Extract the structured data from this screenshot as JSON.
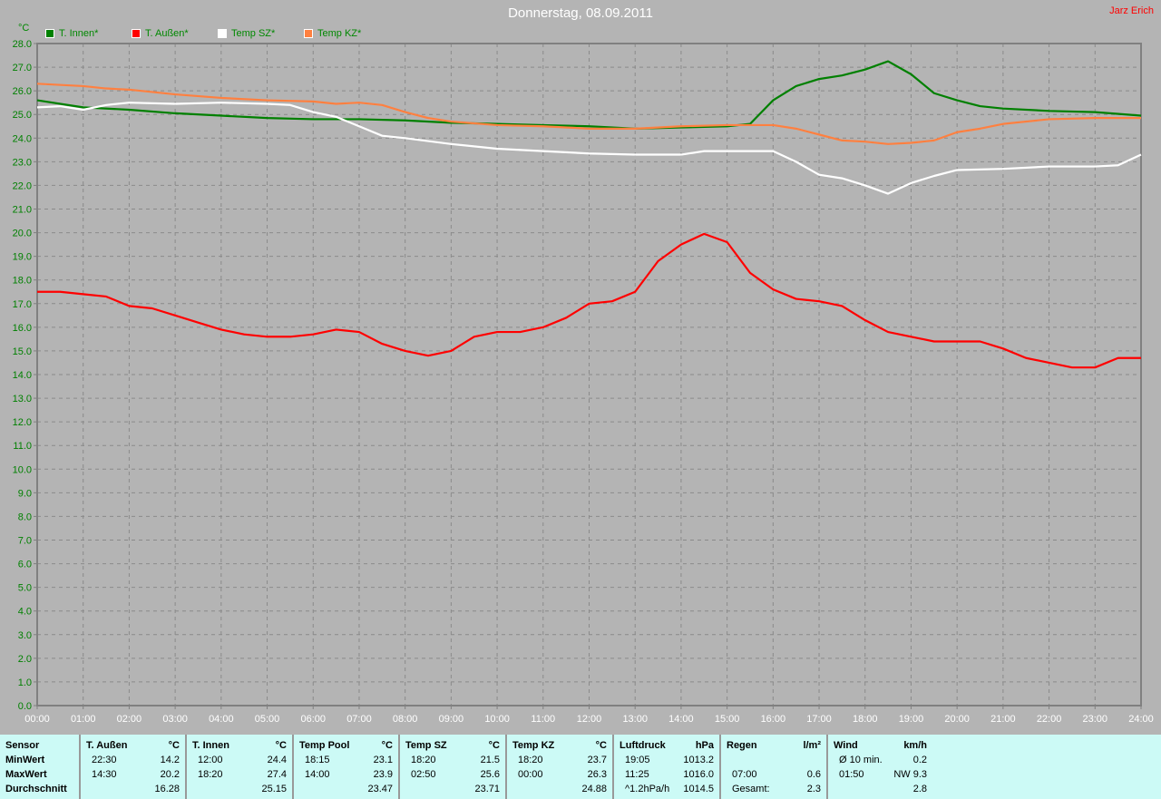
{
  "title": "Donnerstag, 08.09.2011",
  "author": "Jarz Erich",
  "colors": {
    "background": "#b4b4b4",
    "grid": "#8a8a8a",
    "axis_text": "#008000",
    "table_bg": "#ccfaf6"
  },
  "chart_data": {
    "type": "line",
    "title": "Donnerstag, 08.09.2011",
    "ylabel": "°C",
    "ylim": [
      0,
      28
    ],
    "xlim": [
      "00:00",
      "24:00"
    ],
    "grid": true,
    "legend_position": "top-left",
    "yticks": [
      "0.0",
      "1.0",
      "2.0",
      "3.0",
      "4.0",
      "5.0",
      "6.0",
      "7.0",
      "8.0",
      "9.0",
      "10.0",
      "11.0",
      "12.0",
      "13.0",
      "14.0",
      "15.0",
      "16.0",
      "17.0",
      "18.0",
      "19.0",
      "20.0",
      "21.0",
      "22.0",
      "23.0",
      "24.0",
      "25.0",
      "26.0",
      "27.0",
      "28.0"
    ],
    "xticks": [
      "00:00",
      "01:00",
      "02:00",
      "03:00",
      "04:00",
      "05:00",
      "06:00",
      "07:00",
      "08:00",
      "09:00",
      "10:00",
      "11:00",
      "12:00",
      "13:00",
      "14:00",
      "15:00",
      "16:00",
      "17:00",
      "18:00",
      "19:00",
      "20:00",
      "21:00",
      "22:00",
      "23:00",
      "24:00"
    ],
    "series": [
      {
        "name": "T. Innen*",
        "color": "#008000",
        "points": [
          [
            "00:00",
            25.6
          ],
          [
            "01:00",
            25.3
          ],
          [
            "02:00",
            25.2
          ],
          [
            "03:00",
            25.05
          ],
          [
            "04:00",
            24.95
          ],
          [
            "05:00",
            24.85
          ],
          [
            "06:00",
            24.8
          ],
          [
            "07:00",
            24.8
          ],
          [
            "08:00",
            24.75
          ],
          [
            "09:00",
            24.65
          ],
          [
            "10:00",
            24.6
          ],
          [
            "11:00",
            24.55
          ],
          [
            "12:00",
            24.5
          ],
          [
            "13:00",
            24.4
          ],
          [
            "14:00",
            24.45
          ],
          [
            "15:00",
            24.5
          ],
          [
            "15:30",
            24.6
          ],
          [
            "16:00",
            25.6
          ],
          [
            "16:30",
            26.2
          ],
          [
            "17:00",
            26.5
          ],
          [
            "17:30",
            26.65
          ],
          [
            "18:00",
            26.9
          ],
          [
            "18:30",
            27.25
          ],
          [
            "19:00",
            26.7
          ],
          [
            "19:30",
            25.9
          ],
          [
            "20:00",
            25.6
          ],
          [
            "20:30",
            25.35
          ],
          [
            "21:00",
            25.25
          ],
          [
            "22:00",
            25.15
          ],
          [
            "23:00",
            25.1
          ],
          [
            "24:00",
            24.95
          ]
        ]
      },
      {
        "name": "T. Außen*",
        "color": "#ff0000",
        "points": [
          [
            "00:00",
            17.5
          ],
          [
            "00:30",
            17.5
          ],
          [
            "01:00",
            17.4
          ],
          [
            "01:30",
            17.3
          ],
          [
            "02:00",
            16.9
          ],
          [
            "02:30",
            16.8
          ],
          [
            "03:00",
            16.5
          ],
          [
            "03:30",
            16.2
          ],
          [
            "04:00",
            15.9
          ],
          [
            "04:30",
            15.7
          ],
          [
            "05:00",
            15.6
          ],
          [
            "05:30",
            15.6
          ],
          [
            "06:00",
            15.7
          ],
          [
            "06:30",
            15.9
          ],
          [
            "07:00",
            15.8
          ],
          [
            "07:30",
            15.3
          ],
          [
            "08:00",
            15.0
          ],
          [
            "08:30",
            14.8
          ],
          [
            "09:00",
            15.0
          ],
          [
            "09:30",
            15.6
          ],
          [
            "10:00",
            15.8
          ],
          [
            "10:30",
            15.8
          ],
          [
            "11:00",
            16.0
          ],
          [
            "11:30",
            16.4
          ],
          [
            "12:00",
            17.0
          ],
          [
            "12:30",
            17.1
          ],
          [
            "13:00",
            17.5
          ],
          [
            "13:30",
            18.8
          ],
          [
            "14:00",
            19.5
          ],
          [
            "14:30",
            19.95
          ],
          [
            "15:00",
            19.6
          ],
          [
            "15:30",
            18.3
          ],
          [
            "16:00",
            17.6
          ],
          [
            "16:30",
            17.2
          ],
          [
            "17:00",
            17.1
          ],
          [
            "17:30",
            16.9
          ],
          [
            "18:00",
            16.3
          ],
          [
            "18:30",
            15.8
          ],
          [
            "19:00",
            15.6
          ],
          [
            "19:30",
            15.4
          ],
          [
            "20:00",
            15.4
          ],
          [
            "20:30",
            15.4
          ],
          [
            "21:00",
            15.1
          ],
          [
            "21:30",
            14.7
          ],
          [
            "22:00",
            14.5
          ],
          [
            "22:30",
            14.3
          ],
          [
            "23:00",
            14.3
          ],
          [
            "23:30",
            14.7
          ],
          [
            "24:00",
            14.7
          ]
        ]
      },
      {
        "name": "Temp SZ*",
        "color": "#ffffff",
        "points": [
          [
            "00:00",
            25.3
          ],
          [
            "00:30",
            25.35
          ],
          [
            "01:00",
            25.2
          ],
          [
            "01:30",
            25.4
          ],
          [
            "02:00",
            25.5
          ],
          [
            "03:00",
            25.45
          ],
          [
            "04:00",
            25.5
          ],
          [
            "05:00",
            25.45
          ],
          [
            "05:30",
            25.4
          ],
          [
            "06:00",
            25.1
          ],
          [
            "06:30",
            24.9
          ],
          [
            "07:00",
            24.5
          ],
          [
            "07:30",
            24.1
          ],
          [
            "08:00",
            24.0
          ],
          [
            "09:00",
            23.75
          ],
          [
            "10:00",
            23.55
          ],
          [
            "11:00",
            23.45
          ],
          [
            "12:00",
            23.35
          ],
          [
            "13:00",
            23.3
          ],
          [
            "14:00",
            23.3
          ],
          [
            "14:30",
            23.45
          ],
          [
            "15:00",
            23.45
          ],
          [
            "16:00",
            23.45
          ],
          [
            "16:30",
            23.0
          ],
          [
            "17:00",
            22.45
          ],
          [
            "17:30",
            22.3
          ],
          [
            "18:00",
            22.0
          ],
          [
            "18:30",
            21.65
          ],
          [
            "19:00",
            22.1
          ],
          [
            "19:30",
            22.4
          ],
          [
            "20:00",
            22.65
          ],
          [
            "21:00",
            22.7
          ],
          [
            "22:00",
            22.8
          ],
          [
            "23:00",
            22.8
          ],
          [
            "23:30",
            22.85
          ],
          [
            "24:00",
            23.3
          ]
        ]
      },
      {
        "name": "Temp KZ*",
        "color": "#ff8040",
        "points": [
          [
            "00:00",
            26.3
          ],
          [
            "01:00",
            26.2
          ],
          [
            "01:30",
            26.1
          ],
          [
            "02:00",
            26.05
          ],
          [
            "03:00",
            25.85
          ],
          [
            "04:00",
            25.7
          ],
          [
            "05:00",
            25.6
          ],
          [
            "06:00",
            25.55
          ],
          [
            "06:30",
            25.45
          ],
          [
            "07:00",
            25.5
          ],
          [
            "07:30",
            25.4
          ],
          [
            "08:00",
            25.1
          ],
          [
            "08:30",
            24.85
          ],
          [
            "09:00",
            24.7
          ],
          [
            "10:00",
            24.55
          ],
          [
            "11:00",
            24.5
          ],
          [
            "12:00",
            24.4
          ],
          [
            "13:00",
            24.4
          ],
          [
            "14:00",
            24.5
          ],
          [
            "15:00",
            24.55
          ],
          [
            "16:00",
            24.55
          ],
          [
            "16:30",
            24.4
          ],
          [
            "17:00",
            24.15
          ],
          [
            "17:30",
            23.9
          ],
          [
            "18:00",
            23.85
          ],
          [
            "18:30",
            23.75
          ],
          [
            "19:00",
            23.8
          ],
          [
            "19:30",
            23.9
          ],
          [
            "20:00",
            24.25
          ],
          [
            "20:30",
            24.4
          ],
          [
            "21:00",
            24.6
          ],
          [
            "22:00",
            24.8
          ],
          [
            "23:00",
            24.85
          ],
          [
            "24:00",
            24.85
          ]
        ]
      }
    ]
  },
  "table": {
    "columns": [
      {
        "header": "Sensor",
        "unit": "",
        "rows": [
          [
            "MinWert",
            ""
          ],
          [
            "MaxWert",
            ""
          ],
          [
            "Durchschnitt",
            ""
          ]
        ],
        "bold_labels": true
      },
      {
        "header": "T. Außen",
        "unit": "°C",
        "rows": [
          [
            "22:30",
            "14.2"
          ],
          [
            "14:30",
            "20.2"
          ],
          [
            "",
            "16.28"
          ]
        ]
      },
      {
        "header": "T. Innen",
        "unit": "°C",
        "rows": [
          [
            "12:00",
            "24.4"
          ],
          [
            "18:20",
            "27.4"
          ],
          [
            "",
            "25.15"
          ]
        ]
      },
      {
        "header": "Temp Pool",
        "unit": "°C",
        "rows": [
          [
            "18:15",
            "23.1"
          ],
          [
            "14:00",
            "23.9"
          ],
          [
            "",
            "23.47"
          ]
        ]
      },
      {
        "header": "Temp SZ",
        "unit": "°C",
        "rows": [
          [
            "18:20",
            "21.5"
          ],
          [
            "02:50",
            "25.6"
          ],
          [
            "",
            "23.71"
          ]
        ]
      },
      {
        "header": "Temp KZ",
        "unit": "°C",
        "rows": [
          [
            "18:20",
            "23.7"
          ],
          [
            "00:00",
            "26.3"
          ],
          [
            "",
            "24.88"
          ]
        ]
      },
      {
        "header": "Luftdruck",
        "unit": "hPa",
        "rows": [
          [
            "19:05",
            "1013.2"
          ],
          [
            "11:25",
            "1016.0"
          ],
          [
            "^1.2hPa/h",
            "1014.5"
          ]
        ]
      },
      {
        "header": "Regen",
        "unit": "l/m²",
        "rows": [
          [
            "",
            ""
          ],
          [
            "07:00",
            "0.6"
          ],
          [
            "Gesamt:",
            "2.3"
          ]
        ]
      },
      {
        "header": "Wind",
        "unit": "km/h",
        "rows": [
          [
            "Ø 10 min.",
            "0.2"
          ],
          [
            "01:50",
            "NW 9.3"
          ],
          [
            "",
            "2.8"
          ]
        ]
      }
    ]
  }
}
